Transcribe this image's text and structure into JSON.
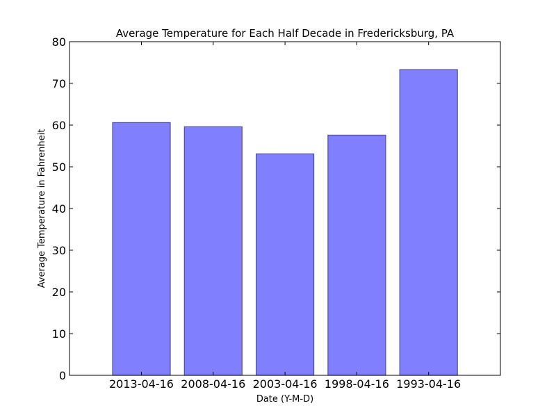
{
  "chart_data": {
    "type": "bar",
    "title": "Average Temperature for Each Half Decade in Fredericksburg, PA",
    "xlabel": "Date (Y-M-D)",
    "ylabel": "Average Temperature in Fahrenheit",
    "categories": [
      "2013-04-16",
      "2008-04-16",
      "2003-04-16",
      "1998-04-16",
      "1993-04-16"
    ],
    "values": [
      60.6,
      59.6,
      53.1,
      57.6,
      73.3
    ],
    "ylim": [
      0,
      80
    ],
    "yticks": [
      0,
      10,
      20,
      30,
      40,
      50,
      60,
      70,
      80
    ],
    "grid": false,
    "legend": "none",
    "colors": {
      "bar_fill": "#8080ff",
      "bar_edge": "#4d4d99"
    }
  }
}
